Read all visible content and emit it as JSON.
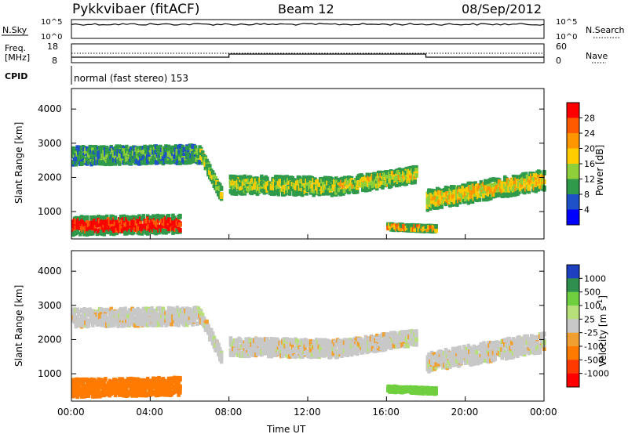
{
  "header": {
    "station": "Pykkvibaer (fitACF)",
    "beam": "Beam 12",
    "date": "08/Sep/2012"
  },
  "strip_panels": {
    "nsky": {
      "label": "N.Sky",
      "ticks": [
        "10^5",
        "10^0"
      ]
    },
    "nsearch": {
      "label": "N.Search",
      "ticks": [
        "10^5",
        "10^0"
      ]
    },
    "freq": {
      "label_line1": "Freq.",
      "label_line2": "[MHz]",
      "ticks": [
        "18",
        "8"
      ]
    },
    "nave": {
      "label": "Nave",
      "ticks": [
        "60",
        "0"
      ]
    },
    "cpid": {
      "label": "CPID",
      "value": "normal (fast stereo) 153"
    }
  },
  "chart_data": [
    {
      "type": "heatmap",
      "name": "power",
      "ylabel": "Slant Range [km]",
      "y_ticks": [
        "4000",
        "3000",
        "2000",
        "1000"
      ],
      "ylim": [
        200,
        4600
      ],
      "colorbar": {
        "label": "Power [dB]",
        "ticks": [
          "28",
          "24",
          "20",
          "16",
          "12",
          "8",
          "4"
        ],
        "colors": [
          "#ff0000",
          "#ff5a00",
          "#ff9600",
          "#ffcc00",
          "#8fcf3a",
          "#2e9a4a",
          "#1e50c8",
          "#0000ff"
        ]
      },
      "bands": [
        {
          "t0": 0.0,
          "t1": 6.5,
          "r_start": 2700,
          "r_end": 2750,
          "width": 500,
          "level": 6
        },
        {
          "t0": 6.5,
          "t1": 7.6,
          "r_start": 2750,
          "r_end": 1500,
          "width": 350,
          "level": 9
        },
        {
          "t0": 8.0,
          "t1": 13.5,
          "r_start": 1850,
          "r_end": 1800,
          "width": 500,
          "level": 10
        },
        {
          "t0": 13.5,
          "t1": 17.5,
          "r_start": 1800,
          "r_end": 2150,
          "width": 450,
          "level": 12
        },
        {
          "t0": 18.0,
          "t1": 24.0,
          "r_start": 1400,
          "r_end": 2000,
          "width": 550,
          "level": 14
        },
        {
          "t0": 0.0,
          "t1": 5.5,
          "r_start": 650,
          "r_end": 700,
          "width": 500,
          "level": 26
        },
        {
          "t0": 16.0,
          "t1": 18.5,
          "r_start": 620,
          "r_end": 560,
          "width": 150,
          "level": 18
        }
      ]
    },
    {
      "type": "heatmap",
      "name": "velocity",
      "ylabel": "Slant Range [km]",
      "y_ticks": [
        "4000",
        "3000",
        "2000",
        "1000"
      ],
      "ylim": [
        200,
        4600
      ],
      "colorbar": {
        "label": "Velocity [m s^-1]",
        "ticks": [
          "1000",
          "500",
          "100",
          "25",
          "-25",
          "-100",
          "-500",
          "-1000"
        ],
        "colors": [
          "#1e3fbf",
          "#2f8f4f",
          "#6fcf3f",
          "#b8e07a",
          "#c8c8c8",
          "#f0a030",
          "#ff7a00",
          "#ff3a00",
          "#ff0000"
        ]
      },
      "bands": [
        {
          "t0": 0.0,
          "t1": 6.5,
          "r_start": 2700,
          "r_end": 2750,
          "width": 500,
          "level": 0
        },
        {
          "t0": 6.5,
          "t1": 7.6,
          "r_start": 2750,
          "r_end": 1500,
          "width": 350,
          "level": 0
        },
        {
          "t0": 8.0,
          "t1": 13.5,
          "r_start": 1850,
          "r_end": 1800,
          "width": 500,
          "level": 0
        },
        {
          "t0": 13.5,
          "t1": 17.5,
          "r_start": 1800,
          "r_end": 2150,
          "width": 450,
          "level": 0
        },
        {
          "t0": 18.0,
          "t1": 24.0,
          "r_start": 1400,
          "r_end": 2000,
          "width": 550,
          "level": 0
        },
        {
          "t0": 0.0,
          "t1": 5.5,
          "r_start": 650,
          "r_end": 700,
          "width": 500,
          "level": -400
        },
        {
          "t0": 16.0,
          "t1": 18.5,
          "r_start": 620,
          "r_end": 560,
          "width": 150,
          "level": 150
        }
      ]
    }
  ],
  "x_axis": {
    "label": "Time UT",
    "ticks": [
      "00:00",
      "04:00",
      "08:00",
      "12:00",
      "16:00",
      "20:00",
      "00:00"
    ],
    "xlim": [
      0,
      24
    ]
  }
}
